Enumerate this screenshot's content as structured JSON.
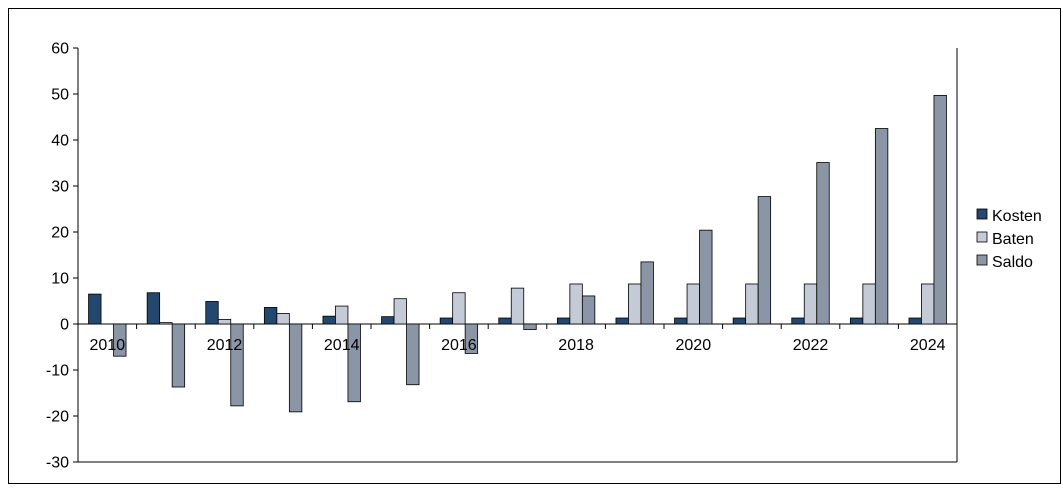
{
  "chart_data": {
    "type": "bar",
    "categories": [
      "2010",
      "2011",
      "2012",
      "2013",
      "2014",
      "2015",
      "2016",
      "2017",
      "2018",
      "2019",
      "2020",
      "2021",
      "2022",
      "2023",
      "2024"
    ],
    "x_tick_labels": [
      "2010",
      "",
      "2012",
      "",
      "2014",
      "",
      "2016",
      "",
      "2018",
      "",
      "2020",
      "",
      "2022",
      "",
      "2024"
    ],
    "series": [
      {
        "name": "Kosten",
        "color": "#24476e",
        "values": [
          6.5,
          6.8,
          4.9,
          3.6,
          1.7,
          1.6,
          1.3,
          1.3,
          1.3,
          1.3,
          1.3,
          1.3,
          1.3,
          1.3,
          1.3
        ]
      },
      {
        "name": "Baten",
        "color": "#c4cbd6",
        "values": [
          0,
          0.3,
          1.0,
          2.3,
          3.9,
          5.5,
          6.8,
          7.8,
          8.7,
          8.7,
          8.7,
          8.7,
          8.7,
          8.7,
          8.7
        ]
      },
      {
        "name": "Saldo",
        "color": "#8a95a6",
        "values": [
          -7,
          -13.7,
          -17.8,
          -19.1,
          -16.9,
          -13.2,
          -6.4,
          -1.2,
          6.1,
          13.5,
          20.4,
          27.7,
          35.1,
          42.5,
          49.7
        ]
      }
    ],
    "ylim": [
      -30,
      60
    ],
    "y_ticks": [
      -30,
      -20,
      -10,
      0,
      10,
      20,
      30,
      40,
      50,
      60
    ],
    "grid": false,
    "legend_position": "right",
    "title": "",
    "xlabel": "",
    "ylabel": ""
  }
}
